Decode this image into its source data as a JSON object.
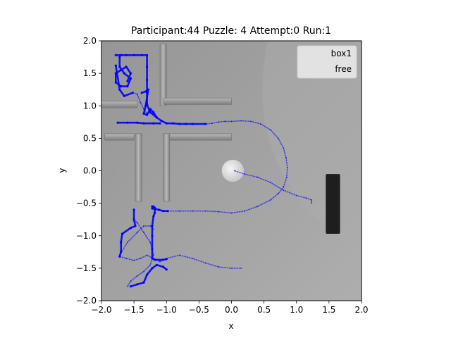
{
  "chart_data": {
    "type": "scatter",
    "title": "Participant:44 Puzzle: 4 Attempt:0 Run:1",
    "xlabel": "x",
    "ylabel": "y",
    "xlim": [
      -2.0,
      2.0
    ],
    "ylim": [
      -2.0,
      2.0
    ],
    "xticks": [
      "−2.0",
      "−1.5",
      "−1.0",
      "−0.5",
      "0.0",
      "0.5",
      "1.0",
      "1.5",
      "2.0"
    ],
    "yticks": [
      "−2.0",
      "−1.5",
      "−1.0",
      "−0.5",
      "0.0",
      "0.5",
      "1.0",
      "1.5",
      "2.0"
    ],
    "xtick_values": [
      -2.0,
      -1.5,
      -1.0,
      -0.5,
      0.0,
      0.5,
      1.0,
      1.5,
      2.0
    ],
    "ytick_values": [
      -2.0,
      -1.5,
      -1.0,
      -0.5,
      0.0,
      0.5,
      1.0,
      1.5,
      2.0
    ],
    "grid": false,
    "legend_position": "top-right",
    "background_scene": {
      "walls": [
        {
          "x0": -1.1,
          "y0": 1.0,
          "x1": -1.0,
          "y1": 1.95
        },
        {
          "x0": -2.0,
          "y0": 0.97,
          "x1": -1.45,
          "y1": 1.07
        },
        {
          "x0": -1.05,
          "y0": 1.02,
          "x1": 0.0,
          "y1": 1.12
        },
        {
          "x0": -1.95,
          "y0": 0.47,
          "x1": -1.5,
          "y1": 0.57
        },
        {
          "x0": -1.48,
          "y0": -0.47,
          "x1": -1.38,
          "y1": 0.57
        },
        {
          "x0": -1.05,
          "y0": 0.47,
          "x1": 0.0,
          "y1": 0.57
        },
        {
          "x0": -1.05,
          "y0": -0.47,
          "x1": -0.95,
          "y1": 0.57
        }
      ],
      "ball": {
        "x": 0.02,
        "y": 0.0,
        "r": 0.17
      },
      "block": {
        "x0": 1.45,
        "y0": -0.97,
        "x1": 1.67,
        "y1": -0.05
      }
    },
    "series": [
      {
        "name": "box1",
        "color": "#0000ff",
        "segments": [
          [
            [
              -1.78,
              1.78
            ],
            [
              -1.7,
              1.78
            ],
            [
              -1.62,
              1.78
            ],
            [
              -1.5,
              1.78
            ],
            [
              -1.38,
              1.78
            ],
            [
              -1.3,
              1.78
            ],
            [
              -1.3,
              1.6
            ],
            [
              -1.3,
              1.4
            ],
            [
              -1.3,
              1.2
            ],
            [
              -1.3,
              1.02
            ],
            [
              -1.25,
              0.9
            ],
            [
              -1.15,
              0.82
            ],
            [
              -1.08,
              0.77
            ],
            [
              -1.0,
              0.73
            ],
            [
              -0.9,
              0.73
            ],
            [
              -0.8,
              0.72
            ],
            [
              -0.7,
              0.72
            ],
            [
              -0.6,
              0.72
            ],
            [
              -0.4,
              0.72
            ]
          ],
          [
            [
              -1.72,
              1.75
            ],
            [
              -1.72,
              1.6
            ],
            [
              -1.65,
              1.5
            ],
            [
              -1.55,
              1.42
            ],
            [
              -1.6,
              1.3
            ],
            [
              -1.7,
              1.3
            ],
            [
              -1.78,
              1.36
            ],
            [
              -1.78,
              1.5
            ],
            [
              -1.7,
              1.55
            ],
            [
              -1.62,
              1.6
            ],
            [
              -1.55,
              1.5
            ],
            [
              -1.6,
              1.38
            ]
          ],
          [
            [
              -1.78,
              1.62
            ],
            [
              -1.72,
              1.25
            ],
            [
              -1.65,
              1.15
            ],
            [
              -1.52,
              1.2
            ]
          ],
          [
            [
              -1.38,
              1.2
            ],
            [
              -1.32,
              1.22
            ],
            [
              -1.28,
              1.25
            ],
            [
              -1.32,
              1.0
            ],
            [
              -1.35,
              0.88
            ],
            [
              -1.3,
              0.86
            ],
            [
              -1.25,
              0.95
            ],
            [
              -1.2,
              0.9
            ],
            [
              -1.15,
              0.82
            ]
          ],
          [
            [
              -1.75,
              0.74
            ],
            [
              -1.6,
              0.74
            ],
            [
              -1.45,
              0.74
            ],
            [
              -1.35,
              0.73
            ],
            [
              -1.2,
              0.73
            ],
            [
              -1.1,
              0.73
            ]
          ],
          [
            [
              -1.5,
              -0.6
            ],
            [
              -1.5,
              -0.75
            ],
            [
              -1.48,
              -0.85
            ],
            [
              -1.55,
              -0.88
            ],
            [
              -1.68,
              -0.97
            ],
            [
              -1.7,
              -1.1
            ],
            [
              -1.7,
              -1.25
            ],
            [
              -1.72,
              -1.32
            ]
          ],
          [
            [
              -1.22,
              -0.55
            ],
            [
              -1.2,
              -0.55
            ],
            [
              -1.18,
              -0.57
            ],
            [
              -1.18,
              -0.65
            ],
            [
              -1.2,
              -0.7
            ],
            [
              -1.22,
              -0.85
            ],
            [
              -1.22,
              -1.0
            ],
            [
              -1.22,
              -1.2
            ],
            [
              -1.22,
              -1.35
            ],
            [
              -1.18,
              -1.37
            ],
            [
              -1.05,
              -1.37
            ],
            [
              -1.0,
              -1.36
            ]
          ],
          [
            [
              -1.22,
              -0.58
            ],
            [
              -1.12,
              -0.6
            ],
            [
              -1.05,
              -0.62
            ],
            [
              -0.98,
              -0.62
            ]
          ],
          [
            [
              -1.55,
              -1.78
            ],
            [
              -1.45,
              -1.75
            ],
            [
              -1.35,
              -1.72
            ],
            [
              -1.3,
              -1.6
            ],
            [
              -1.22,
              -1.5
            ],
            [
              -1.15,
              -1.45
            ],
            [
              -1.05,
              -1.48
            ],
            [
              -1.0,
              -1.52
            ]
          ]
        ]
      },
      {
        "name": "free",
        "color": "#0000ff",
        "segments": [
          [
            [
              -0.98,
              -0.62
            ],
            [
              -0.8,
              -0.62
            ],
            [
              -0.6,
              -0.62
            ],
            [
              -0.4,
              -0.62
            ],
            [
              -0.2,
              -0.63
            ],
            [
              0.0,
              -0.65
            ],
            [
              0.2,
              -0.62
            ],
            [
              0.4,
              -0.55
            ],
            [
              0.6,
              -0.45
            ],
            [
              0.72,
              -0.35
            ],
            [
              0.8,
              -0.25
            ],
            [
              0.85,
              -0.1
            ],
            [
              0.86,
              0.05
            ],
            [
              0.84,
              0.2
            ],
            [
              0.8,
              0.35
            ],
            [
              0.72,
              0.5
            ],
            [
              0.6,
              0.63
            ],
            [
              0.45,
              0.72
            ],
            [
              0.3,
              0.76
            ],
            [
              0.15,
              0.77
            ],
            [
              0.0,
              0.76
            ],
            [
              -0.1,
              0.76
            ],
            [
              -0.2,
              0.75
            ],
            [
              -0.3,
              0.73
            ],
            [
              -0.4,
              0.72
            ]
          ],
          [
            [
              0.05,
              0.0
            ],
            [
              0.2,
              -0.05
            ],
            [
              0.4,
              -0.1
            ],
            [
              0.6,
              -0.18
            ],
            [
              0.8,
              -0.3
            ],
            [
              1.0,
              -0.38
            ],
            [
              1.15,
              -0.42
            ],
            [
              1.23,
              -0.45
            ],
            [
              1.23,
              -0.5
            ]
          ],
          [
            [
              -1.72,
              -1.32
            ],
            [
              -1.62,
              -1.35
            ],
            [
              -1.5,
              -1.38
            ],
            [
              -1.4,
              -1.35
            ],
            [
              -1.3,
              -1.3
            ],
            [
              -1.2,
              -1.35
            ],
            [
              -1.1,
              -1.4
            ],
            [
              -1.0,
              -1.35
            ],
            [
              -0.8,
              -1.3
            ],
            [
              -0.6,
              -1.35
            ],
            [
              -0.4,
              -1.42
            ],
            [
              -0.2,
              -1.48
            ],
            [
              0.0,
              -1.5
            ],
            [
              0.15,
              -1.5
            ]
          ],
          [
            [
              -1.72,
              -1.3
            ],
            [
              -1.6,
              -1.1
            ],
            [
              -1.45,
              -0.95
            ],
            [
              -1.35,
              -0.85
            ],
            [
              -1.25,
              -0.85
            ],
            [
              -1.2,
              -0.9
            ]
          ],
          [
            [
              -1.5,
              -0.75
            ],
            [
              -1.45,
              -0.8
            ],
            [
              -1.35,
              -0.95
            ],
            [
              -1.25,
              -1.1
            ],
            [
              -1.2,
              -1.3
            ],
            [
              -1.25,
              -1.45
            ],
            [
              -1.35,
              -1.55
            ],
            [
              -1.45,
              -1.62
            ],
            [
              -1.55,
              -1.7
            ],
            [
              -1.6,
              -1.78
            ]
          ],
          [
            [
              -1.52,
              1.2
            ],
            [
              -1.45,
              1.18
            ],
            [
              -1.4,
              1.05
            ],
            [
              -1.35,
              0.95
            ],
            [
              -1.3,
              0.88
            ]
          ]
        ]
      }
    ]
  }
}
